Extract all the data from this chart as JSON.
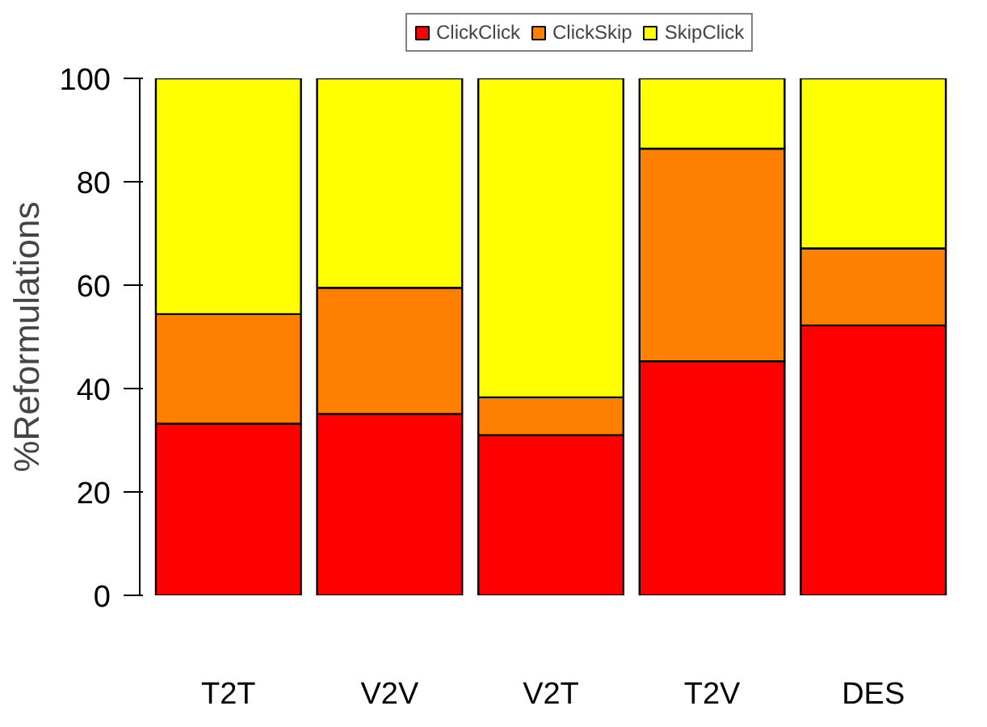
{
  "chart_data": {
    "type": "bar",
    "stacked": true,
    "ylabel": "%Reformulations",
    "categories": [
      "T2T",
      "V2V",
      "V2T",
      "T2V",
      "DES"
    ],
    "series": [
      {
        "name": "ClickClick",
        "color": "#ff0000",
        "values": [
          33.2,
          35.1,
          31.0,
          45.3,
          52.2
        ]
      },
      {
        "name": "ClickSkip",
        "color": "#ff7f00",
        "values": [
          21.2,
          24.4,
          7.3,
          41.1,
          14.9
        ]
      },
      {
        "name": "SkipClick",
        "color": "#ffff00",
        "values": [
          45.6,
          40.5,
          61.7,
          13.6,
          32.9
        ]
      }
    ],
    "ylim": [
      0,
      100
    ],
    "yticks": [
      0,
      20,
      40,
      60,
      80,
      100
    ],
    "grid": false,
    "legend": "top"
  }
}
